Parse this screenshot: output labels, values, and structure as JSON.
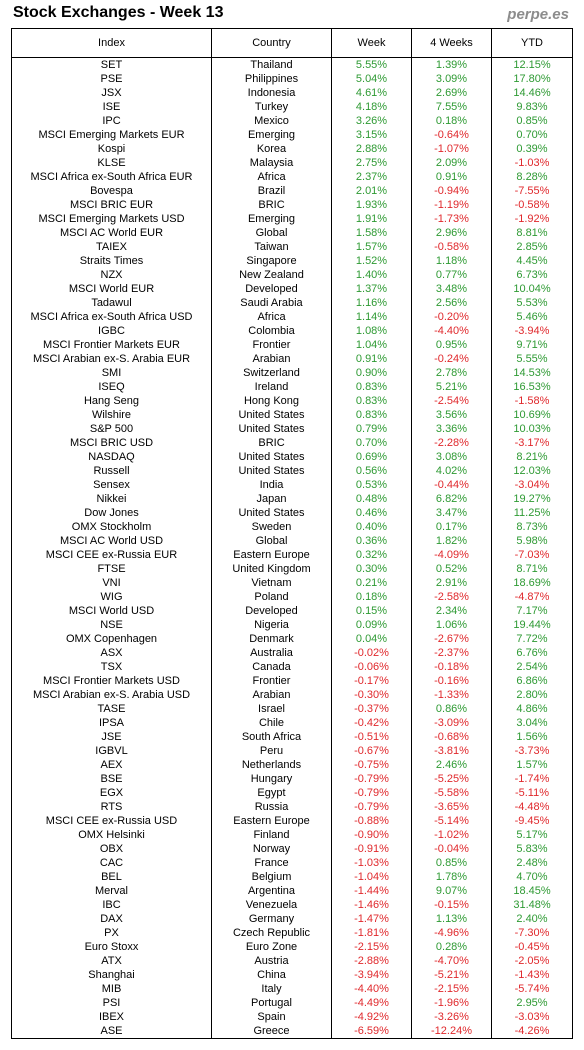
{
  "title": "Stock Exchanges - Week 13",
  "brand": "perpe.es",
  "colors": {
    "positive": "#2e9a33",
    "negative": "#e0282c"
  },
  "columns": [
    "Index",
    "Country",
    "Week",
    "4 Weeks",
    "YTD"
  ],
  "rows": [
    [
      "SET",
      "Thailand",
      "5.55%",
      "1.39%",
      "12.15%"
    ],
    [
      "PSE",
      "Philippines",
      "5.04%",
      "3.09%",
      "17.80%"
    ],
    [
      "JSX",
      "Indonesia",
      "4.61%",
      "2.69%",
      "14.46%"
    ],
    [
      "ISE",
      "Turkey",
      "4.18%",
      "7.55%",
      "9.83%"
    ],
    [
      "IPC",
      "Mexico",
      "3.26%",
      "0.18%",
      "0.85%"
    ],
    [
      "MSCI Emerging Markets EUR",
      "Emerging",
      "3.15%",
      "-0.64%",
      "0.70%"
    ],
    [
      "Kospi",
      "Korea",
      "2.88%",
      "-1.07%",
      "0.39%"
    ],
    [
      "KLSE",
      "Malaysia",
      "2.75%",
      "2.09%",
      "-1.03%"
    ],
    [
      "MSCI Africa ex-South Africa EUR",
      "Africa",
      "2.37%",
      "0.91%",
      "8.28%"
    ],
    [
      "Bovespa",
      "Brazil",
      "2.01%",
      "-0.94%",
      "-7.55%"
    ],
    [
      "MSCI BRIC EUR",
      "BRIC",
      "1.93%",
      "-1.19%",
      "-0.58%"
    ],
    [
      "MSCI Emerging Markets USD",
      "Emerging",
      "1.91%",
      "-1.73%",
      "-1.92%"
    ],
    [
      "MSCI AC World EUR",
      "Global",
      "1.58%",
      "2.96%",
      "8.81%"
    ],
    [
      "TAIEX",
      "Taiwan",
      "1.57%",
      "-0.58%",
      "2.85%"
    ],
    [
      "Straits Times",
      "Singapore",
      "1.52%",
      "1.18%",
      "4.45%"
    ],
    [
      "NZX",
      "New Zealand",
      "1.40%",
      "0.77%",
      "6.73%"
    ],
    [
      "MSCI World EUR",
      "Developed",
      "1.37%",
      "3.48%",
      "10.04%"
    ],
    [
      "Tadawul",
      "Saudi Arabia",
      "1.16%",
      "2.56%",
      "5.53%"
    ],
    [
      "MSCI Africa ex-South Africa USD",
      "Africa",
      "1.14%",
      "-0.20%",
      "5.46%"
    ],
    [
      "IGBC",
      "Colombia",
      "1.08%",
      "-4.40%",
      "-3.94%"
    ],
    [
      "MSCI Frontier Markets EUR",
      "Frontier",
      "1.04%",
      "0.95%",
      "9.71%"
    ],
    [
      "MSCI Arabian ex-S. Arabia EUR",
      "Arabian",
      "0.91%",
      "-0.24%",
      "5.55%"
    ],
    [
      "SMI",
      "Switzerland",
      "0.90%",
      "2.78%",
      "14.53%"
    ],
    [
      "ISEQ",
      "Ireland",
      "0.83%",
      "5.21%",
      "16.53%"
    ],
    [
      "Hang Seng",
      "Hong Kong",
      "0.83%",
      "-2.54%",
      "-1.58%"
    ],
    [
      "Wilshire",
      "United States",
      "0.83%",
      "3.56%",
      "10.69%"
    ],
    [
      "S&P 500",
      "United States",
      "0.79%",
      "3.36%",
      "10.03%"
    ],
    [
      "MSCI BRIC USD",
      "BRIC",
      "0.70%",
      "-2.28%",
      "-3.17%"
    ],
    [
      "NASDAQ",
      "United States",
      "0.69%",
      "3.08%",
      "8.21%"
    ],
    [
      "Russell",
      "United States",
      "0.56%",
      "4.02%",
      "12.03%"
    ],
    [
      "Sensex",
      "India",
      "0.53%",
      "-0.44%",
      "-3.04%"
    ],
    [
      "Nikkei",
      "Japan",
      "0.48%",
      "6.82%",
      "19.27%"
    ],
    [
      "Dow Jones",
      "United States",
      "0.46%",
      "3.47%",
      "11.25%"
    ],
    [
      "OMX Stockholm",
      "Sweden",
      "0.40%",
      "0.17%",
      "8.73%"
    ],
    [
      "MSCI AC World USD",
      "Global",
      "0.36%",
      "1.82%",
      "5.98%"
    ],
    [
      "MSCI CEE ex-Russia EUR",
      "Eastern Europe",
      "0.32%",
      "-4.09%",
      "-7.03%"
    ],
    [
      "FTSE",
      "United Kingdom",
      "0.30%",
      "0.52%",
      "8.71%"
    ],
    [
      "VNI",
      "Vietnam",
      "0.21%",
      "2.91%",
      "18.69%"
    ],
    [
      "WIG",
      "Poland",
      "0.18%",
      "-2.58%",
      "-4.87%"
    ],
    [
      "MSCI World USD",
      "Developed",
      "0.15%",
      "2.34%",
      "7.17%"
    ],
    [
      "NSE",
      "Nigeria",
      "0.09%",
      "1.06%",
      "19.44%"
    ],
    [
      "OMX Copenhagen",
      "Denmark",
      "0.04%",
      "-2.67%",
      "7.72%"
    ],
    [
      "ASX",
      "Australia",
      "-0.02%",
      "-2.37%",
      "6.76%"
    ],
    [
      "TSX",
      "Canada",
      "-0.06%",
      "-0.18%",
      "2.54%"
    ],
    [
      "MSCI Frontier Markets USD",
      "Frontier",
      "-0.17%",
      "-0.16%",
      "6.86%"
    ],
    [
      "MSCI Arabian ex-S. Arabia USD",
      "Arabian",
      "-0.30%",
      "-1.33%",
      "2.80%"
    ],
    [
      "TASE",
      "Israel",
      "-0.37%",
      "0.86%",
      "4.86%"
    ],
    [
      "IPSA",
      "Chile",
      "-0.42%",
      "-3.09%",
      "3.04%"
    ],
    [
      "JSE",
      "South Africa",
      "-0.51%",
      "-0.68%",
      "1.56%"
    ],
    [
      "IGBVL",
      "Peru",
      "-0.67%",
      "-3.81%",
      "-3.73%"
    ],
    [
      "AEX",
      "Netherlands",
      "-0.75%",
      "2.46%",
      "1.57%"
    ],
    [
      "BSE",
      "Hungary",
      "-0.79%",
      "-5.25%",
      "-1.74%"
    ],
    [
      "EGX",
      "Egypt",
      "-0.79%",
      "-5.58%",
      "-5.11%"
    ],
    [
      "RTS",
      "Russia",
      "-0.79%",
      "-3.65%",
      "-4.48%"
    ],
    [
      "MSCI CEE ex-Russia USD",
      "Eastern Europe",
      "-0.88%",
      "-5.14%",
      "-9.45%"
    ],
    [
      "OMX Helsinki",
      "Finland",
      "-0.90%",
      "-1.02%",
      "5.17%"
    ],
    [
      "OBX",
      "Norway",
      "-0.91%",
      "-0.04%",
      "5.83%"
    ],
    [
      "CAC",
      "France",
      "-1.03%",
      "0.85%",
      "2.48%"
    ],
    [
      "BEL",
      "Belgium",
      "-1.04%",
      "1.78%",
      "4.70%"
    ],
    [
      "Merval",
      "Argentina",
      "-1.44%",
      "9.07%",
      "18.45%"
    ],
    [
      "IBC",
      "Venezuela",
      "-1.46%",
      "-0.15%",
      "31.48%"
    ],
    [
      "DAX",
      "Germany",
      "-1.47%",
      "1.13%",
      "2.40%"
    ],
    [
      "PX",
      "Czech Republic",
      "-1.81%",
      "-4.96%",
      "-7.30%"
    ],
    [
      "Euro Stoxx",
      "Euro Zone",
      "-2.15%",
      "0.28%",
      "-0.45%"
    ],
    [
      "ATX",
      "Austria",
      "-2.88%",
      "-4.70%",
      "-2.05%"
    ],
    [
      "Shanghai",
      "China",
      "-3.94%",
      "-5.21%",
      "-1.43%"
    ],
    [
      "MIB",
      "Italy",
      "-4.40%",
      "-2.15%",
      "-5.74%"
    ],
    [
      "PSI",
      "Portugal",
      "-4.49%",
      "-1.96%",
      "2.95%"
    ],
    [
      "IBEX",
      "Spain",
      "-4.92%",
      "-3.26%",
      "-3.03%"
    ],
    [
      "ASE",
      "Greece",
      "-6.59%",
      "-12.24%",
      "-4.26%"
    ]
  ]
}
